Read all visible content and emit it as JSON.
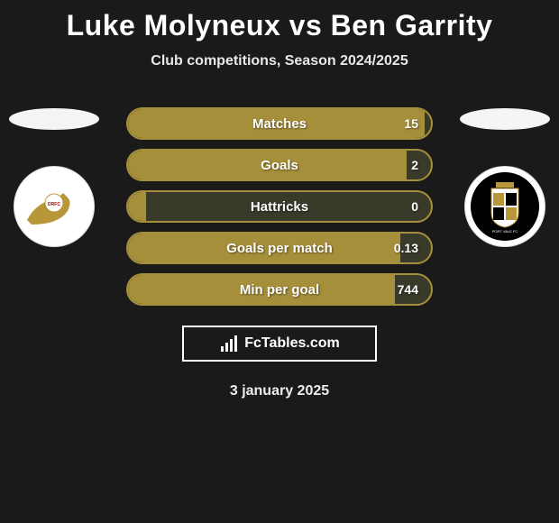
{
  "title": "Luke Molyneux vs Ben Garrity",
  "subtitle": "Club competitions, Season 2024/2025",
  "date": "3 january 2025",
  "brand": "FcTables.com",
  "colors": {
    "background": "#1a1a1a",
    "bar_border": "#a68f3b",
    "bar_fill": "#a68f3b",
    "bar_bg": "#3a3a2a",
    "text": "#ffffff"
  },
  "left_team": {
    "crest_primary": "#b8963a",
    "crest_bg": "#ffffff"
  },
  "right_team": {
    "crest_primary": "#000000",
    "crest_accent": "#b8963a",
    "crest_bg": "#ffffff"
  },
  "stats": [
    {
      "label": "Matches",
      "value": "15",
      "fill_pct": 98
    },
    {
      "label": "Goals",
      "value": "2",
      "fill_pct": 92
    },
    {
      "label": "Hattricks",
      "value": "0",
      "fill_pct": 6
    },
    {
      "label": "Goals per match",
      "value": "0.13",
      "fill_pct": 90
    },
    {
      "label": "Min per goal",
      "value": "744",
      "fill_pct": 88
    }
  ]
}
